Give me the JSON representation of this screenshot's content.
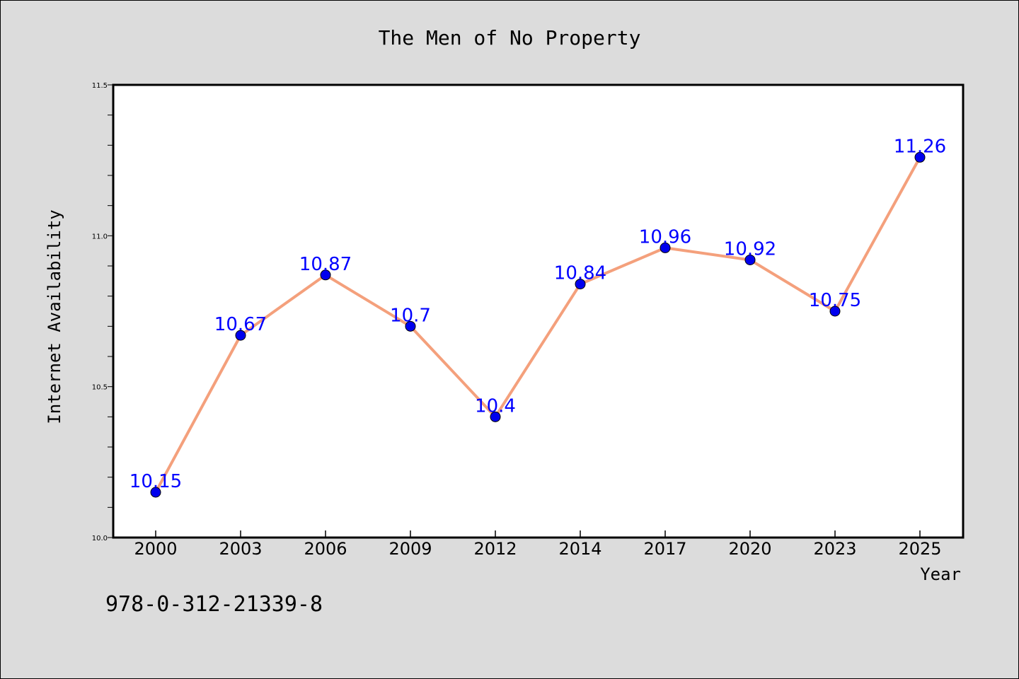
{
  "chart_data": {
    "type": "line",
    "title": "The Men of No Property",
    "xlabel": "Year",
    "ylabel": "Internet Availability",
    "categories": [
      "2000",
      "2003",
      "2006",
      "2009",
      "2012",
      "2014",
      "2017",
      "2020",
      "2023",
      "2025"
    ],
    "series": [
      {
        "values": [
          10.15,
          10.67,
          10.87,
          10.7,
          10.4,
          10.84,
          10.96,
          10.92,
          10.75,
          11.26
        ]
      }
    ],
    "data_labels": [
      "10.15",
      "10.67",
      "10.87",
      "10.7",
      "10.4",
      "10.84",
      "10.96",
      "10.92",
      "10.75",
      "11.26"
    ],
    "ylim": [
      10.0,
      11.5
    ],
    "yticks": [
      "10.0",
      "10.5",
      "11.0",
      "11.5"
    ],
    "grid": false,
    "colors": {
      "line": "#f4a07c",
      "marker": "#0000ee",
      "label": "#0000ff",
      "background": "#dcdcdc",
      "plot_background": "#ffffff"
    }
  },
  "footer": {
    "isbn": "978-0-312-21339-8"
  }
}
